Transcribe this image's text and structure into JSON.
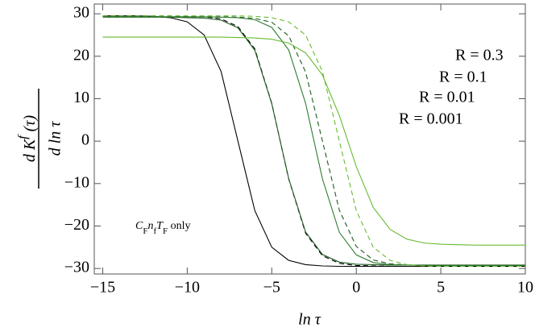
{
  "chart_data": {
    "type": "line",
    "x": [
      -15,
      -14,
      -13,
      -12,
      -11,
      -10,
      -9,
      -8,
      -7,
      -6,
      -5,
      -4,
      -3,
      -2,
      -1,
      0,
      1,
      2,
      3,
      4,
      5,
      6,
      7,
      8,
      9,
      10
    ],
    "series": [
      {
        "color": "#000000",
        "dash": false,
        "values": [
          29.5,
          29.5,
          29.5,
          29.4,
          29.1,
          28.1,
          25.0,
          16.4,
          0,
          -16.4,
          -25.0,
          -28.1,
          -29.1,
          -29.4,
          -29.5,
          -29.5,
          -29.5,
          -29.5,
          -29.5,
          -29.5,
          -29.5,
          -29.5,
          -29.5,
          -29.5,
          -29.5,
          -29.5
        ]
      },
      {
        "color": "#000000",
        "dash": true,
        "values": [
          29.5,
          29.5,
          29.5,
          29.5,
          29.5,
          29.4,
          29.3,
          28.8,
          27.0,
          21.7,
          8.9,
          -8.9,
          -21.7,
          -27.0,
          -28.8,
          -29.3,
          -29.4,
          -29.5,
          -29.5,
          -29.5,
          -29.5,
          -29.5,
          -29.5,
          -29.5,
          -29.5,
          -29.5
        ]
      },
      {
        "color": "#1e5a1e",
        "dash": false,
        "values": [
          29.2,
          29.2,
          29.2,
          29.2,
          29.2,
          29.1,
          29.0,
          28.5,
          26.7,
          21.4,
          8.8,
          -8.8,
          -21.4,
          -26.7,
          -28.5,
          -29.0,
          -29.1,
          -29.2,
          -29.2,
          -29.2,
          -29.2,
          -29.2,
          -29.2,
          -29.2,
          -29.2,
          -29.2
        ]
      },
      {
        "color": "#1e5a1e",
        "dash": true,
        "values": [
          29.3,
          29.3,
          29.3,
          29.3,
          29.3,
          29.3,
          29.3,
          29.3,
          29.2,
          28.9,
          28.0,
          24.8,
          16.3,
          0,
          -16.3,
          -24.8,
          -28.0,
          -28.9,
          -29.2,
          -29.3,
          -29.3,
          -29.3,
          -29.3,
          -29.3,
          -29.3,
          -29.3
        ]
      },
      {
        "color": "#2e7d2e",
        "dash": false,
        "values": [
          29.3,
          29.3,
          29.3,
          29.3,
          29.3,
          29.3,
          29.3,
          29.2,
          29.1,
          28.6,
          26.8,
          21.5,
          8.9,
          -8.9,
          -21.5,
          -26.8,
          -28.6,
          -29.1,
          -29.2,
          -29.3,
          -29.3,
          -29.3,
          -29.3,
          -29.3,
          -29.3,
          -29.3
        ]
      },
      {
        "color": "#66bb33",
        "dash": true,
        "values": [
          29.5,
          29.5,
          29.5,
          29.5,
          29.5,
          29.5,
          29.5,
          29.5,
          29.5,
          29.4,
          29.1,
          28.1,
          25.0,
          16.4,
          0,
          -16.4,
          -25.0,
          -28.1,
          -29.1,
          -29.4,
          -29.5,
          -29.5,
          -29.5,
          -29.5,
          -29.5,
          -29.5
        ]
      },
      {
        "color": "#66bb33",
        "dash": false,
        "values": [
          24.5,
          24.5,
          24.5,
          24.5,
          24.5,
          24.5,
          24.5,
          24.5,
          24.4,
          24.3,
          24.0,
          23.1,
          20.8,
          15.6,
          6.0,
          -6.0,
          -15.6,
          -20.8,
          -23.1,
          -24.0,
          -24.3,
          -24.4,
          -24.5,
          -24.5,
          -24.5,
          -24.5
        ]
      }
    ],
    "annotations": [
      {
        "text": "R = 0.3",
        "color": "#66bb33"
      },
      {
        "text": "R = 0.1",
        "color": "#2e7d2e"
      },
      {
        "text": "R = 0.01",
        "color": "#1e5a1e"
      },
      {
        "text": "R = 0.001",
        "color": "#000000"
      }
    ],
    "note": [
      "C",
      "F",
      "n",
      "f",
      "T",
      "F",
      " only"
    ],
    "ylabel": {
      "numerator": [
        "d K",
        "f",
        " (τ)"
      ],
      "denominator": "d ln τ"
    },
    "xlabel": "ln τ",
    "xlim": [
      -15.5,
      10
    ],
    "ylim": [
      -31.3,
      32.3
    ],
    "xticks": [
      {
        "value": -15,
        "label": "−15"
      },
      {
        "value": -10,
        "label": "−10"
      },
      {
        "value": -5,
        "label": "−5"
      },
      0,
      5,
      10
    ],
    "yticks": [
      30,
      20,
      10,
      0,
      {
        "value": -10,
        "label": "−10"
      },
      {
        "value": -20,
        "label": "−20"
      },
      {
        "value": -30,
        "label": "−30"
      }
    ]
  }
}
